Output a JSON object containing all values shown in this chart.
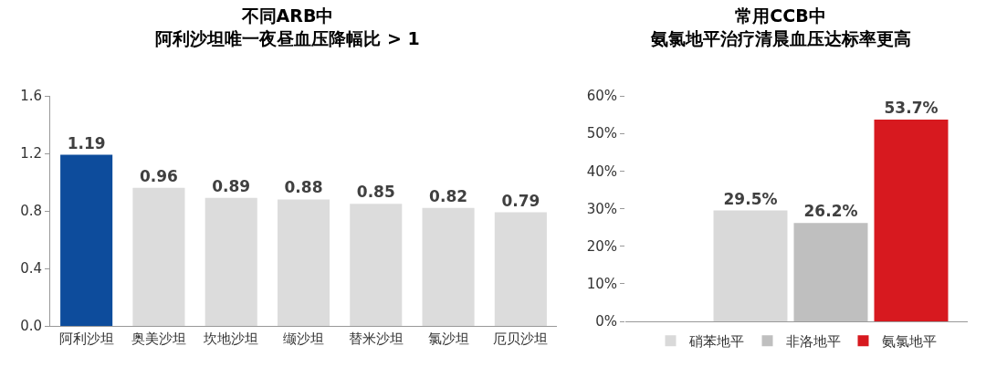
{
  "chart_data": [
    {
      "type": "bar",
      "title": "不同ARB中",
      "subtitle": "阿利沙坦唯一夜昼血压降幅比 > 1",
      "categories": [
        "阿利沙坦",
        "奥美沙坦",
        "坎地沙坦",
        "缬沙坦",
        "替米沙坦",
        "氯沙坦",
        "厄贝沙坦"
      ],
      "values": [
        1.19,
        0.96,
        0.89,
        0.88,
        0.85,
        0.82,
        0.79
      ],
      "colors": [
        "#0d4c9c",
        "#dcdcdc",
        "#dcdcdc",
        "#dcdcdc",
        "#dcdcdc",
        "#dcdcdc",
        "#dcdcdc"
      ],
      "data_labels": true,
      "ylim": [
        0,
        1.6
      ],
      "yticks": [
        {
          "value": 0,
          "label": "0.0"
        },
        0.4,
        0.8,
        1.2,
        1.6
      ],
      "grid": false,
      "legend": false
    },
    {
      "type": "bar",
      "title": "常用CCB中",
      "subtitle": "氨氯地平治疗清晨血压达标率更高",
      "categories": [
        null
      ],
      "series": [
        {
          "name": "硝苯地平",
          "color": "#d9d9d9",
          "values": [
            29.5
          ],
          "value_labels": [
            "29.5%"
          ]
        },
        {
          "name": "非洛地平",
          "color": "#bfbfbf",
          "values": [
            26.2
          ],
          "value_labels": [
            "26.2%"
          ]
        },
        {
          "name": "氨氯地平",
          "color": "#d7191f",
          "values": [
            53.7
          ],
          "value_labels": [
            "53.7%"
          ]
        }
      ],
      "ylim": [
        0,
        60
      ],
      "yticks": [
        {
          "value": 0,
          "label": "0%"
        },
        {
          "value": 10,
          "label": "10%"
        },
        {
          "value": 20,
          "label": "20%"
        },
        {
          "value": 30,
          "label": "30%"
        },
        {
          "value": 40,
          "label": "40%"
        },
        {
          "value": 50,
          "label": "50%"
        },
        {
          "value": 60,
          "label": "60%"
        }
      ],
      "tick_labels": "y",
      "grid": false,
      "legend": "bottom"
    }
  ]
}
